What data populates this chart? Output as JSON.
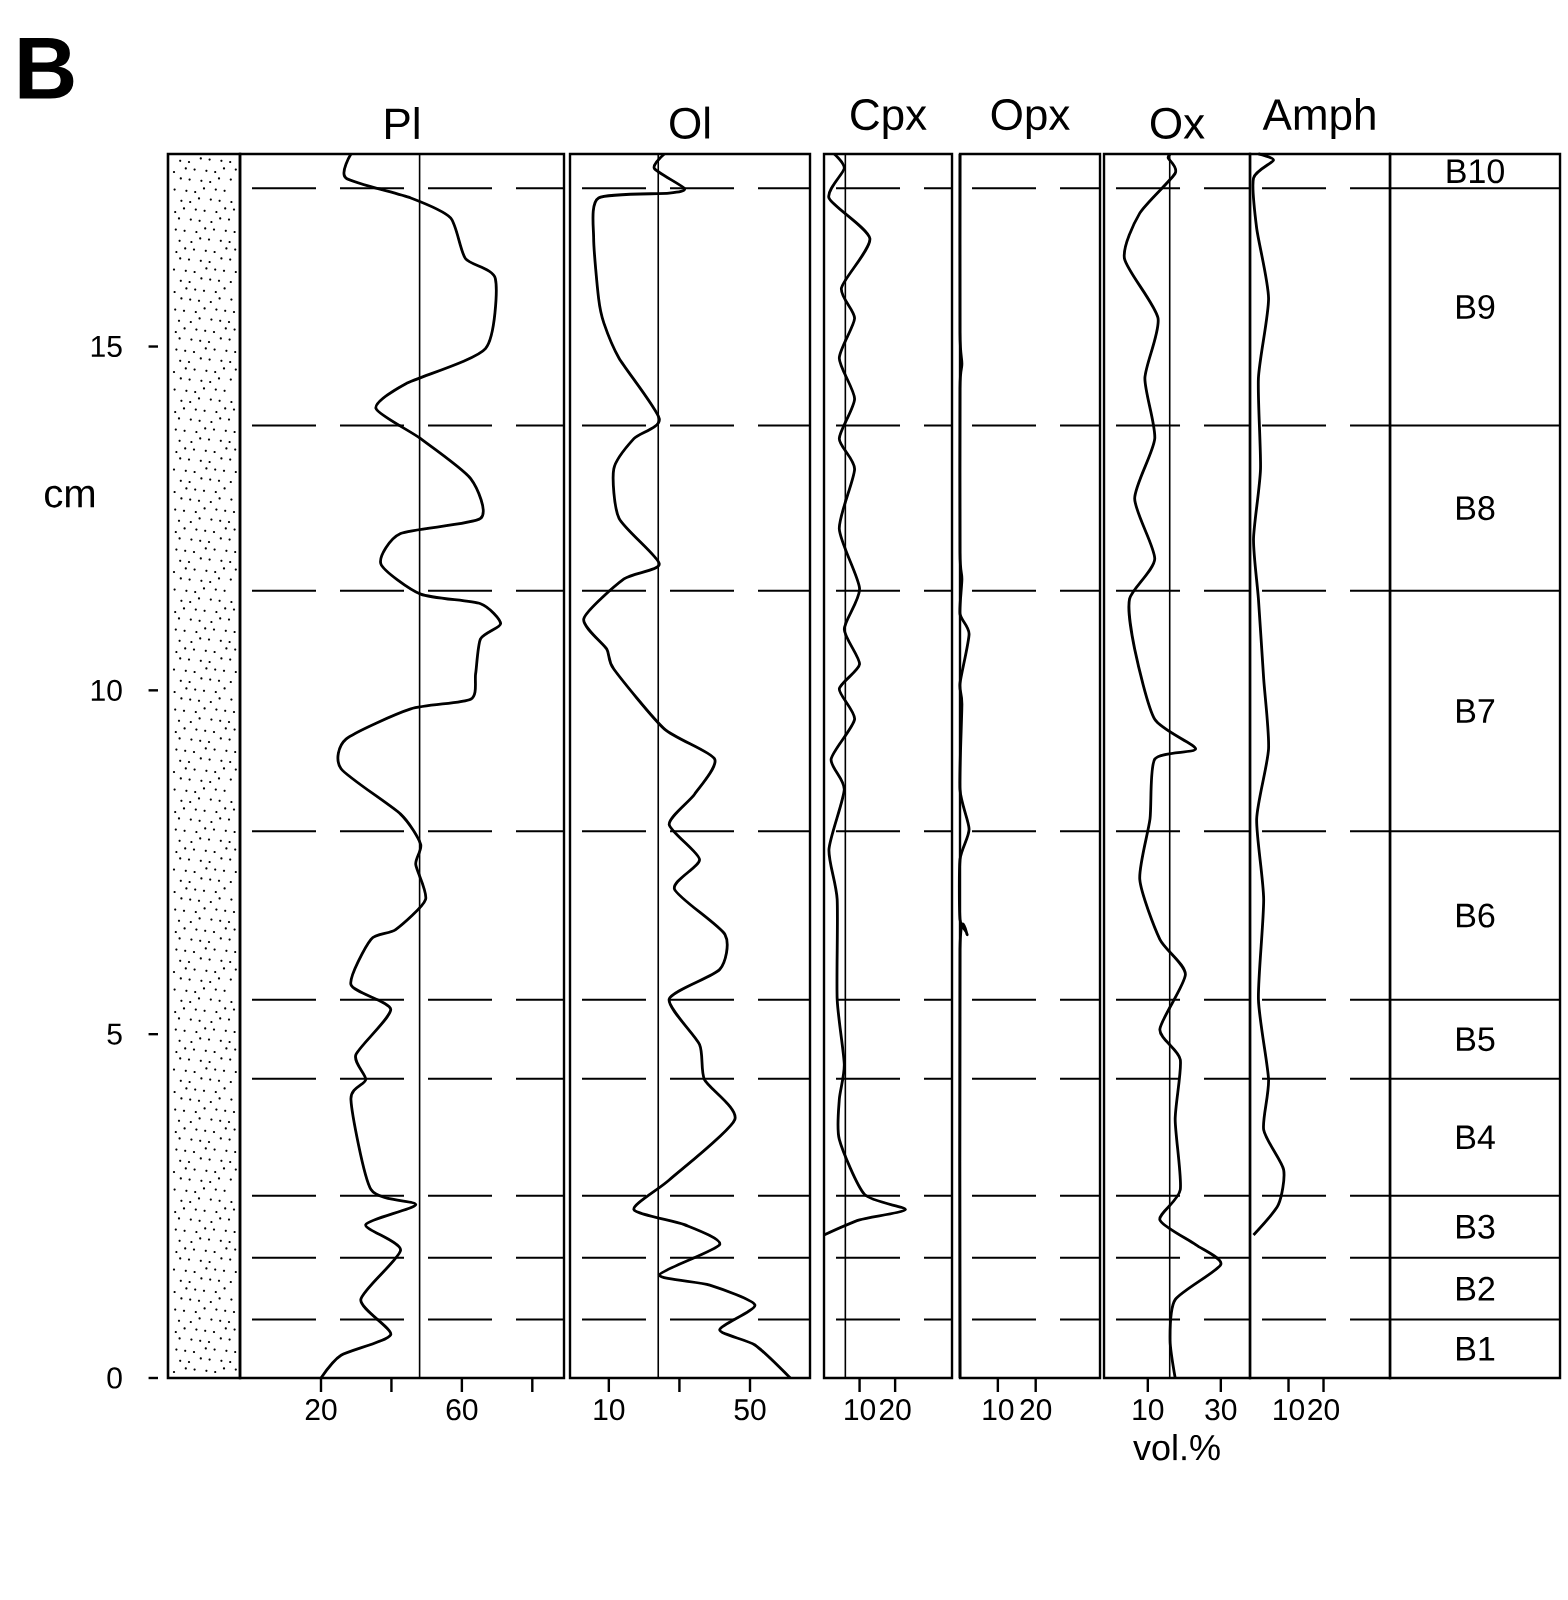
{
  "chart_data": [
    {
      "type": "line",
      "title": "Pl",
      "ylabel": "cm",
      "annotations": [
        "B"
      ],
      "xlim": [
        -3,
        89
      ],
      "ylim": [
        0,
        17.8
      ],
      "xticks": [
        20,
        {
          "value": 40,
          "label": null
        },
        60,
        {
          "value": 80,
          "label": null
        }
      ],
      "yticks": [
        0,
        5,
        10,
        15
      ],
      "ref_lines": [
        {
          "axis": "x",
          "value": 48
        }
      ],
      "series": [
        {
          "color": "#000000",
          "x": [
            20,
            25.7,
            39.8,
            31.3,
            42.6,
            32.7,
            46.9,
            34.2,
            28.5,
            32.7,
            29.9,
            39.8,
            28.5,
            34.2,
            41.2,
            49.7,
            46.9,
            48.3,
            42.6,
            25.7,
            27.1,
            45.5,
            62.5,
            63.9,
            65.3,
            71.0,
            65.3,
            48.3,
            37.0,
            42.6,
            65.3,
            62.5,
            48.3,
            35.6,
            44.1,
            66.7,
            69.5,
            61.0,
            56.8,
            45.5,
            27.1,
            28.5
          ],
          "values": [
            0,
            0.33,
            0.63,
            1.14,
            1.86,
            2.23,
            2.52,
            2.74,
            4.05,
            4.34,
            4.7,
            5.36,
            5.72,
            6.38,
            6.52,
            6.96,
            7.47,
            7.76,
            8.2,
            8.86,
            9.29,
            9.73,
            9.87,
            10.24,
            10.75,
            10.97,
            11.26,
            11.4,
            11.84,
            12.28,
            12.5,
            13.08,
            13.66,
            14.1,
            14.46,
            14.97,
            15.99,
            16.28,
            16.87,
            17.16,
            17.45,
            17.8
          ]
        }
      ]
    },
    {
      "type": "line",
      "title": "Ol",
      "xlim": [
        -1,
        67
      ],
      "ylim": [
        0,
        17.8
      ],
      "xticks": [
        10,
        {
          "value": 30,
          "label": null
        },
        50
      ],
      "tick_labels": "x",
      "ref_lines": [
        {
          "axis": "x",
          "value": 24
        }
      ],
      "series": [
        {
          "color": "#000000",
          "x": [
            61.4,
            51.4,
            41.4,
            51.4,
            38.6,
            24.3,
            41.4,
            31.4,
            17.1,
            27.1,
            45.7,
            37.1,
            35.7,
            27.1,
            41.4,
            42.9,
            28.6,
            35.7,
            27.1,
            34.3,
            40.0,
            25.7,
            11.4,
            9.4,
            2.9,
            14.3,
            24.3,
            12.9,
            11.4,
            17.1,
            24.3,
            12.9,
            8.6,
            7.1,
            5.7,
            7.1,
            27.1,
            31.4,
            22.9,
            25.7
          ],
          "values": [
            0,
            0.48,
            0.7,
            1.06,
            1.35,
            1.5,
            1.94,
            2.23,
            2.45,
            2.88,
            3.76,
            4.34,
            4.85,
            5.51,
            5.94,
            6.45,
            7.11,
            7.54,
            8.05,
            8.49,
            9.0,
            9.44,
            10.31,
            10.6,
            11.04,
            11.62,
            11.84,
            12.5,
            13.22,
            13.66,
            13.95,
            14.83,
            15.34,
            15.7,
            16.57,
            17.16,
            17.23,
            17.3,
            17.59,
            17.8
          ]
        }
      ]
    },
    {
      "type": "line",
      "title": "Cpx",
      "xlim": [
        0,
        36
      ],
      "ylim": [
        0,
        17.8
      ],
      "xticks": [
        10,
        20
      ],
      "tick_labels": "x",
      "ref_lines": [
        {
          "axis": "x",
          "value": 6
        }
      ],
      "series": [
        {
          "color": "#000000",
          "x": [
            0,
            10,
            22.9,
            11.4,
            4.3,
            4.3,
            5.7,
            3.7,
            3.7,
            1.4,
            5.7,
            2.0,
            8.6,
            4.3,
            10,
            5.7,
            10,
            4.3,
            8.6,
            4.3,
            8.6,
            4.3,
            8.6,
            4.9,
            12.9,
            1.4,
            5.7,
            2.9
          ],
          "values": [
            2.08,
            2.3,
            2.45,
            2.67,
            3.47,
            4.05,
            4.56,
            5.51,
            6.96,
            7.69,
            8.56,
            9.0,
            9.58,
            10.02,
            10.38,
            10.89,
            11.48,
            12.35,
            13.22,
            13.66,
            14.24,
            14.83,
            15.41,
            15.85,
            16.57,
            17.16,
            17.59,
            17.8
          ]
        }
      ]
    },
    {
      "type": "line",
      "title": "Opx",
      "xlim": [
        0,
        37
      ],
      "ylim": [
        0,
        17.8
      ],
      "xticks": [
        10,
        20
      ],
      "tick_labels": "x",
      "series": [
        {
          "color": "#000000",
          "x": [
            0,
            0,
            1.9,
            0,
            0,
            2.4,
            0,
            0.5,
            0,
            2.4,
            0,
            0.5,
            0,
            0,
            0.5,
            0,
            0
          ],
          "values": [
            0,
            6.23,
            6.45,
            6.67,
            7.54,
            7.98,
            8.56,
            9.8,
            10.1,
            10.82,
            11.11,
            11.62,
            12.0,
            14.39,
            14.75,
            15.2,
            17.8
          ]
        }
      ]
    },
    {
      "type": "line",
      "title": "Ox",
      "xlabel": "vol.%",
      "xlim": [
        -2,
        38
      ],
      "ylim": [
        0,
        17.8
      ],
      "xticks": [
        10,
        30
      ],
      "tick_labels": "x",
      "ref_lines": [
        {
          "axis": "x",
          "value": 16
        }
      ],
      "series": [
        {
          "color": "#000000",
          "x": [
            17.5,
            16.1,
            17.5,
            30,
            23.1,
            13.3,
            18.9,
            17.5,
            18.9,
            13.3,
            20.3,
            13.3,
            7.8,
            10.6,
            11.9,
            23.1,
            11.9,
            6.4,
            5.0,
            11.9,
            6.4,
            11.9,
            9.2,
            12.8,
            3.6,
            7.8,
            17.5,
            15.6,
            16.1
          ],
          "values": [
            0,
            0.55,
            1.14,
            1.65,
            1.94,
            2.3,
            2.74,
            3.76,
            4.63,
            5.07,
            5.87,
            6.38,
            7.25,
            8.13,
            9.0,
            9.15,
            9.58,
            10.6,
            11.33,
            11.91,
            12.79,
            13.66,
            14.54,
            15.41,
            16.28,
            16.94,
            17.52,
            17.74,
            17.8
          ]
        }
      ]
    },
    {
      "type": "line",
      "title": "Amph",
      "xlim": [
        -1,
        39
      ],
      "ylim": [
        0,
        17.8
      ],
      "xticks": [
        10,
        20
      ],
      "tick_labels": "x",
      "ref_lines": [
        {
          "axis": "y",
          "value": 0.85,
          "line_style": "dashed"
        },
        {
          "axis": "y",
          "value": 1.75,
          "line_style": "dashed"
        },
        {
          "axis": "y",
          "value": 2.65,
          "line_style": "dashed"
        },
        {
          "axis": "y",
          "value": 4.35,
          "line_style": "dashed"
        },
        {
          "axis": "y",
          "value": 5.5,
          "line_style": "dashed"
        },
        {
          "axis": "y",
          "value": 7.95,
          "line_style": "dashed"
        },
        {
          "axis": "y",
          "value": 11.45,
          "line_style": "dashed"
        },
        {
          "axis": "y",
          "value": 13.85,
          "line_style": "dashed"
        },
        {
          "axis": "y",
          "value": 17.3,
          "line_style": "dashed"
        }
      ],
      "annotations": [
        "B1",
        "B2",
        "B3",
        "B4",
        "B5",
        "B6",
        "B7",
        "B8",
        "B9",
        "B10"
      ],
      "series": [
        {
          "color": "#000000",
          "x": [
            0,
            7.1,
            8.6,
            2.9,
            4.3,
            1.4,
            2.9,
            0.9,
            4.3,
            2.9,
            1.4,
            0,
            2.0,
            1.4,
            4.3,
            0.9,
            0,
            5.7,
            1.4
          ],
          "values": [
            2.08,
            2.52,
            3.03,
            3.61,
            4.34,
            5.51,
            6.96,
            8.13,
            9.15,
            10.17,
            11.33,
            12.2,
            13.22,
            14.54,
            15.7,
            16.72,
            17.45,
            17.71,
            17.8
          ]
        }
      ]
    }
  ]
}
